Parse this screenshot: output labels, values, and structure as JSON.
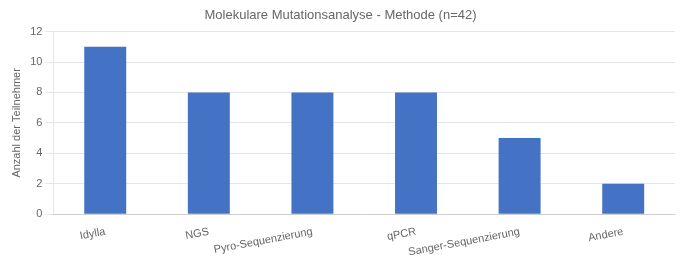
{
  "chart_data": {
    "type": "bar",
    "title": "Molekulare Mutationsanalyse - Methode (n=42)",
    "categories": [
      "Idylla",
      "NGS",
      "Pyro-Sequenzierung",
      "qPCR",
      "Sanger-Sequenzierung",
      "Andere"
    ],
    "values": [
      11,
      8,
      8,
      8,
      5,
      2
    ],
    "color": "#4472c4",
    "ylabel": "Anzahl der Teilnehmer",
    "ylim": [
      0,
      12
    ],
    "yticks": [
      0,
      2,
      4,
      6,
      8,
      10,
      12
    ],
    "grid": true
  }
}
